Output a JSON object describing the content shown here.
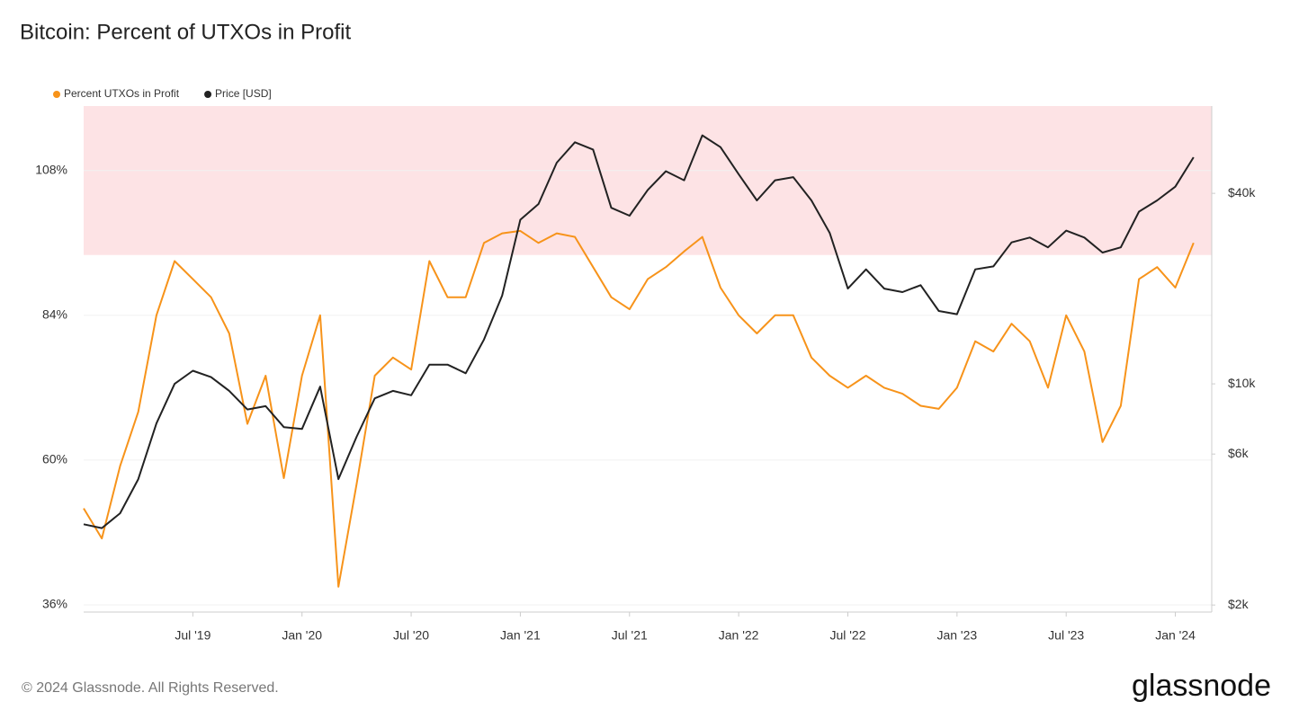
{
  "chart_data": {
    "type": "line",
    "title": "Bitcoin: Percent of UTXOs in Profit",
    "footer": "© 2024 Glassnode. All Rights Reserved.",
    "brand": "glassnode",
    "x": [
      "2019-01",
      "2019-02",
      "2019-03",
      "2019-04",
      "2019-05",
      "2019-06",
      "2019-07",
      "2019-08",
      "2019-09",
      "2019-10",
      "2019-11",
      "2019-12",
      "2020-01",
      "2020-02",
      "2020-03",
      "2020-04",
      "2020-05",
      "2020-06",
      "2020-07",
      "2020-08",
      "2020-09",
      "2020-10",
      "2020-11",
      "2020-12",
      "2021-01",
      "2021-02",
      "2021-03",
      "2021-04",
      "2021-05",
      "2021-06",
      "2021-07",
      "2021-08",
      "2021-09",
      "2021-10",
      "2021-11",
      "2021-12",
      "2022-01",
      "2022-02",
      "2022-03",
      "2022-04",
      "2022-05",
      "2022-06",
      "2022-07",
      "2022-08",
      "2022-09",
      "2022-10",
      "2022-11",
      "2022-12",
      "2023-01",
      "2023-02",
      "2023-03",
      "2023-04",
      "2023-05",
      "2023-06",
      "2023-07",
      "2023-08",
      "2023-09",
      "2023-10",
      "2023-11",
      "2023-12",
      "2024-01",
      "2024-02"
    ],
    "xlim": [
      "2019-01",
      "2024-03"
    ],
    "xticks": [
      {
        "value": "2019-07",
        "label": "Jul '19"
      },
      {
        "value": "2020-01",
        "label": "Jan '20"
      },
      {
        "value": "2020-07",
        "label": "Jul '20"
      },
      {
        "value": "2021-01",
        "label": "Jan '21"
      },
      {
        "value": "2021-07",
        "label": "Jul '21"
      },
      {
        "value": "2022-01",
        "label": "Jan '22"
      },
      {
        "value": "2022-07",
        "label": "Jul '22"
      },
      {
        "value": "2023-01",
        "label": "Jan '23"
      },
      {
        "value": "2023-07",
        "label": "Jul '23"
      },
      {
        "value": "2024-01",
        "label": "Jan '24"
      }
    ],
    "ylim": [
      34.8,
      118.7
    ],
    "yticks": [
      {
        "value": 36,
        "label": "36%"
      },
      {
        "value": 60,
        "label": "60%"
      },
      {
        "value": 84,
        "label": "84%"
      },
      {
        "value": 108,
        "label": "108%"
      }
    ],
    "y2lim": [
      1900,
      75500
    ],
    "y2_scale": "log",
    "y2ticks": [
      {
        "value": 2000,
        "label": "$2k"
      },
      {
        "value": 6000,
        "label": "$6k"
      },
      {
        "value": 10000,
        "label": "$10k"
      },
      {
        "value": 40000,
        "label": "$40k"
      }
    ],
    "grid": true,
    "highlight_band": [
      94,
      118.7
    ],
    "highlight_color": "#fde3e5",
    "legend_position": "top-left",
    "series": [
      {
        "name": "Percent UTXOs in Profit",
        "color": "#f7931a",
        "values": [
          52,
          47,
          59,
          68,
          84,
          93,
          90,
          87,
          81,
          66,
          74,
          57,
          74,
          84,
          39,
          56,
          74,
          77,
          75,
          93,
          87,
          87,
          96,
          97.6,
          98,
          96,
          97.6,
          97,
          92,
          87,
          85,
          90,
          92,
          94.6,
          97,
          88.6,
          84,
          81,
          84,
          84,
          77,
          74,
          72,
          74,
          72,
          71,
          69,
          68.5,
          72,
          79.7,
          78,
          82.6,
          79.7,
          72,
          84,
          78,
          63,
          69,
          90,
          92,
          88.6,
          96
        ]
      },
      {
        "name": "Price [USD]",
        "color": "#222222",
        "axis": "y2",
        "values": [
          3600,
          3500,
          3900,
          5000,
          7500,
          10000,
          11000,
          10500,
          9500,
          8300,
          8500,
          7300,
          7200,
          9800,
          5000,
          6800,
          9000,
          9500,
          9200,
          11500,
          11500,
          10800,
          13800,
          19000,
          33000,
          37000,
          50000,
          58000,
          55000,
          36000,
          34000,
          41000,
          47000,
          44000,
          61000,
          56000,
          46000,
          38000,
          44000,
          45000,
          38000,
          30000,
          20000,
          23000,
          20000,
          19500,
          20500,
          17000,
          16600,
          23000,
          23500,
          28000,
          29000,
          27000,
          30500,
          29000,
          26000,
          27000,
          35000,
          38000,
          42000,
          52000
        ]
      }
    ]
  }
}
